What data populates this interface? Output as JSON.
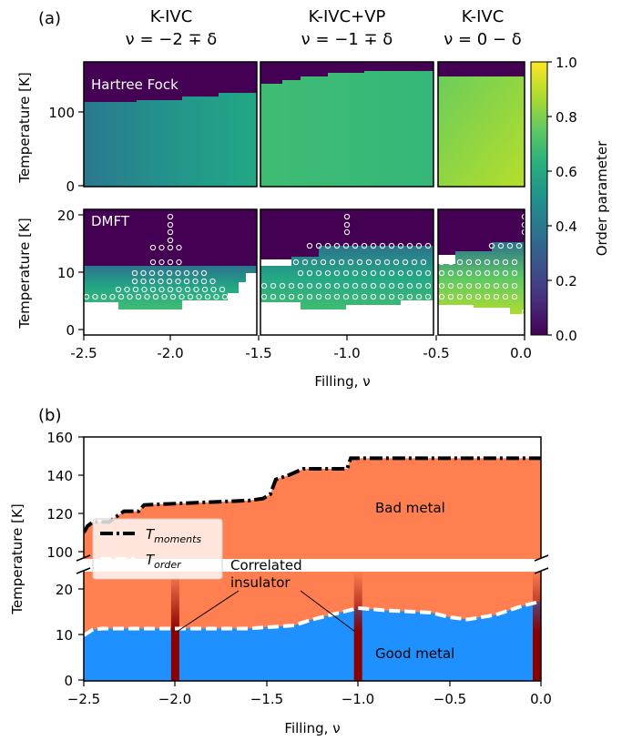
{
  "panel_a": {
    "label": "(a)",
    "columns": [
      {
        "title": "K-IVC",
        "subtitle": "ν = −2 ∓ δ"
      },
      {
        "title": "K-IVC+VP",
        "subtitle": "ν = −1 ∓ δ"
      },
      {
        "title": "K-IVC",
        "subtitle": "ν = 0 − δ"
      }
    ],
    "row_labels": [
      "Hartree Fock",
      "DMFT"
    ],
    "ylabel": "Temperature [K]",
    "xlabel": "Filling, ν",
    "x_ticks": [
      "-2.5",
      "-2.0",
      "-1.5",
      "-1.0",
      "-0.5",
      "0.0"
    ],
    "hf_y_ticks": [
      "0",
      "100"
    ],
    "dmft_y_ticks": [
      "0",
      "10",
      "20"
    ],
    "colorbar": {
      "label": "Order parameter",
      "ticks": [
        "0.0",
        "0.2",
        "0.4",
        "0.6",
        "0.8",
        "1.0"
      ],
      "colormap": "viridis"
    }
  },
  "panel_b": {
    "label": "(b)",
    "ylabel": "Temperature [K]",
    "xlabel": "Filling, ν",
    "x_ticks": [
      "−2.5",
      "−2.0",
      "−1.5",
      "−1.0",
      "−0.5",
      "0.0"
    ],
    "y_ticks_upper": [
      "100",
      "120",
      "140",
      "160"
    ],
    "y_ticks_lower": [
      "0",
      "10",
      "20"
    ],
    "region_labels": {
      "bad": "Bad metal",
      "good": "Good metal",
      "insulator": "Correlated\ninsulator"
    },
    "legend": [
      {
        "name": "T",
        "sub": "moments",
        "style": "black dash-dot"
      },
      {
        "name": "T",
        "sub": "order",
        "style": "white dashed"
      }
    ],
    "colors": {
      "bad_metal": "#ff7f50",
      "good_metal": "#1e90ff",
      "insulator": "#8b0000"
    }
  },
  "chart_data": [
    {
      "type": "heatmap",
      "panel": "a-top (Hartree Fock)",
      "xlabel": "Filling, ν",
      "ylabel": "Temperature [K]",
      "xlim": [
        -2.5,
        0.0
      ],
      "ylim": [
        0,
        170
      ],
      "transition_temperature_K": [
        {
          "x": -2.5,
          "y": 118
        },
        {
          "x": -2.4,
          "y": 121
        },
        {
          "x": -2.2,
          "y": 125
        },
        {
          "x": -2.0,
          "y": 127
        },
        {
          "x": -1.8,
          "y": 130
        },
        {
          "x": -1.6,
          "y": 131
        },
        {
          "x": -1.5,
          "y": 140
        },
        {
          "x": -1.4,
          "y": 142
        },
        {
          "x": -1.2,
          "y": 146
        },
        {
          "x": -1.0,
          "y": 150
        },
        {
          "x": -0.7,
          "y": 151
        },
        {
          "x": -0.5,
          "y": 150
        },
        {
          "x": 0.0,
          "y": 150
        }
      ],
      "order_parameter_at_low_T": [
        {
          "x": -2.5,
          "y": 0.5
        },
        {
          "x": -2.0,
          "y": 0.52
        },
        {
          "x": -1.5,
          "y": 0.58
        },
        {
          "x": -1.0,
          "y": 0.7
        },
        {
          "x": -0.5,
          "y": 0.72
        },
        {
          "x": 0.0,
          "y": 0.9
        }
      ]
    },
    {
      "type": "heatmap",
      "panel": "a-bottom (DMFT)",
      "xlabel": "Filling, ν",
      "ylabel": "Temperature [K]",
      "xlim": [
        -2.5,
        0.0
      ],
      "ylim": [
        0,
        21
      ],
      "ordering_temperature_K": [
        {
          "x": -2.5,
          "y": 10
        },
        {
          "x": -2.0,
          "y": 11
        },
        {
          "x": -1.5,
          "y": 11
        },
        {
          "x": -1.2,
          "y": 13
        },
        {
          "x": -1.0,
          "y": 16
        },
        {
          "x": -0.5,
          "y": 14
        },
        {
          "x": 0.0,
          "y": 17
        }
      ],
      "order_parameter_at_low_T": [
        {
          "x": -2.5,
          "y": 0.55
        },
        {
          "x": -2.0,
          "y": 0.6
        },
        {
          "x": -1.5,
          "y": 0.62
        },
        {
          "x": -1.0,
          "y": 0.7
        },
        {
          "x": -0.5,
          "y": 0.8
        },
        {
          "x": 0.0,
          "y": 0.88
        }
      ]
    },
    {
      "type": "area",
      "panel": "b",
      "xlabel": "Filling, ν",
      "ylabel": "Temperature [K]",
      "xlim": [
        -2.5,
        0.0
      ],
      "ylim_lower": [
        0,
        27
      ],
      "ylim_upper": [
        97,
        160
      ],
      "series": [
        {
          "name": "T_moments",
          "x": [
            -2.5,
            -2.48,
            -2.45,
            -2.36,
            -2.33,
            -2.28,
            -2.2,
            -2.17,
            -1.62,
            -1.6,
            -1.52,
            -1.48,
            -1.45,
            -1.38,
            -1.3,
            -1.06,
            -1.04,
            -0.9,
            0.0
          ],
          "y": [
            115,
            118,
            120,
            120,
            122,
            125,
            125,
            128,
            130,
            130,
            131,
            133,
            140,
            142,
            145,
            145,
            150,
            150,
            150
          ]
        },
        {
          "name": "T_order",
          "x": [
            -2.5,
            -2.45,
            -2.4,
            -2.0,
            -1.6,
            -1.5,
            -1.45,
            -1.35,
            -1.25,
            -1.2,
            -1.1,
            -1.0,
            -0.85,
            -0.6,
            -0.5,
            -0.4,
            -0.25,
            -0.1,
            0.0
          ],
          "y": [
            10,
            11.3,
            11.5,
            11.5,
            11.5,
            11.8,
            11.9,
            12.2,
            13.5,
            14,
            15,
            16,
            15.5,
            15,
            14,
            13.5,
            14.5,
            16.5,
            17.5
          ]
        }
      ],
      "annotations": [
        "Bad metal",
        "Good metal",
        "Correlated insulator"
      ],
      "insulator_fillings": [
        -2.0,
        -1.0,
        0.0
      ]
    }
  ]
}
